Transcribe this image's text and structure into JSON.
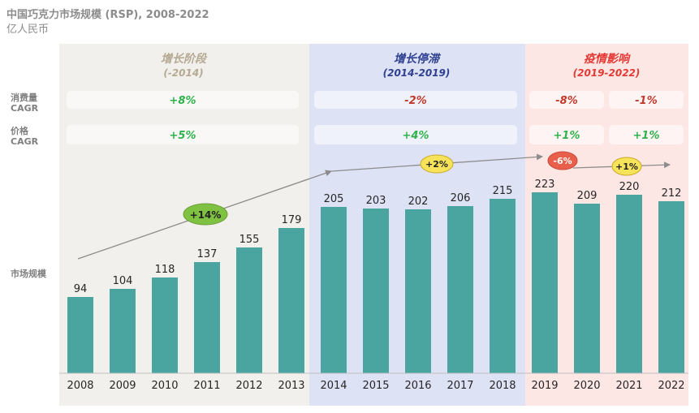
{
  "title": "中国巧克力市场规模 (RSP), 2008-2022",
  "subtitle": "亿人民币",
  "row_labels": {
    "volume_cagr": [
      "消费量",
      "CAGR"
    ],
    "price_cagr": [
      "价格",
      "CAGR"
    ],
    "market_size": "市场规模"
  },
  "colors": {
    "bar": "#4aa5a0",
    "phase1_bg": "#f2f0ec",
    "phase2_bg": "#dde3f5",
    "phase3_bg": "#fde7e4",
    "green_text": "#2fb24c",
    "red_text": "#c0392b",
    "trend_line": "#8c8c8c",
    "growth_badge": "#7fc241",
    "neutral_badge": "#f7e35a",
    "decline_badge": "#e8604c"
  },
  "phases": [
    {
      "name": "增长阶段",
      "range": "(-2014)",
      "volume_cagr": "+8%",
      "price_cagr": "+5%",
      "title_color": "#b5a993"
    },
    {
      "name": "增长停滞",
      "range": "(2014-2019)",
      "volume_cagr": "-2%",
      "price_cagr": "+4%",
      "title_color": "#2f3f91"
    },
    {
      "name": "疫情影响",
      "range": "(2019-2022)",
      "volume_cagr": [
        "-8%",
        "-1%"
      ],
      "price_cagr": [
        "+1%",
        "+1%"
      ],
      "title_color": "#e53935"
    }
  ],
  "trend_badges": [
    "+14%",
    "+2%",
    "-6%",
    "+1%"
  ],
  "chart_data": {
    "type": "bar",
    "categories": [
      "2008",
      "2009",
      "2010",
      "2011",
      "2012",
      "2013",
      "2014",
      "2015",
      "2016",
      "2017",
      "2018",
      "2019",
      "2020",
      "2021",
      "2022"
    ],
    "values": [
      94,
      104,
      118,
      137,
      155,
      179,
      205,
      203,
      202,
      206,
      215,
      223,
      209,
      220,
      212
    ],
    "title": "中国巧克力市场规模 (RSP), 2008-2022",
    "ylabel": "",
    "xlabel": "",
    "ylim": [
      0,
      240
    ],
    "grid": false
  }
}
